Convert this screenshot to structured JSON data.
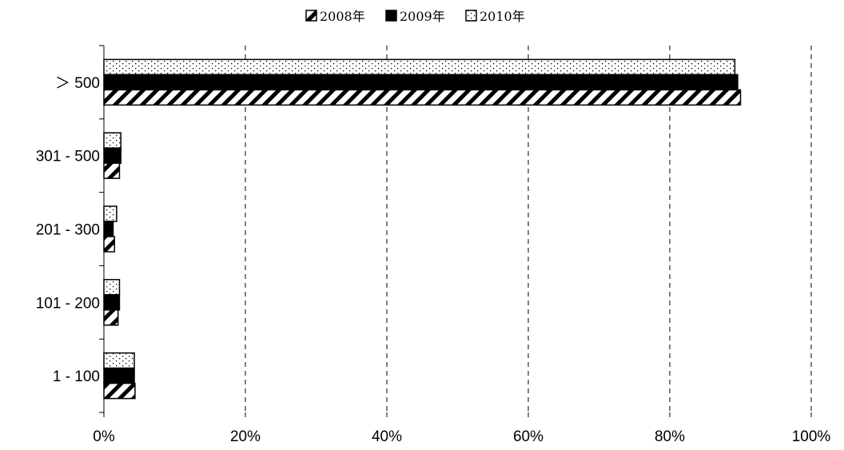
{
  "chart_data": {
    "type": "bar",
    "orientation": "horizontal",
    "title": "",
    "xlabel": "",
    "ylabel": "",
    "categories": [
      "> 500",
      "301 - 500",
      "201 - 300",
      "101 - 200",
      "1 - 100"
    ],
    "category_labels": [
      "＞ 500",
      "301 - 500",
      "201 - 300",
      "101 - 200",
      "1 - 100"
    ],
    "series": [
      {
        "name": "2010年",
        "values": [
          89.2,
          2.4,
          1.8,
          2.2,
          4.3
        ],
        "pattern": "dotted",
        "color": "#000000"
      },
      {
        "name": "2009年",
        "values": [
          89.6,
          2.4,
          1.3,
          2.2,
          4.3
        ],
        "pattern": "solid",
        "color": "#000000"
      },
      {
        "name": "2008年",
        "values": [
          90.0,
          2.2,
          1.5,
          2.0,
          4.4
        ],
        "pattern": "hatched",
        "color": "#000000"
      }
    ],
    "legend_order": [
      "2008年",
      "2009年",
      "2010年"
    ],
    "xlim": [
      0,
      100
    ],
    "x_ticks": [
      0,
      20,
      40,
      60,
      80,
      100
    ],
    "x_tick_labels": [
      "0%",
      "20%",
      "40%",
      "60%",
      "80%",
      "100%"
    ],
    "grid": "vertical-dashed",
    "legend_position": "top-center"
  }
}
